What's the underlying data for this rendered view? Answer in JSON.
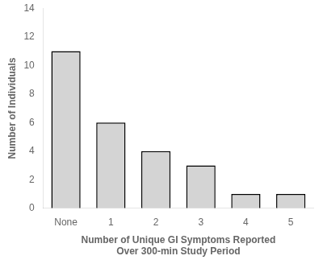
{
  "chart_data": {
    "type": "bar",
    "categories": [
      "None",
      "1",
      "2",
      "3",
      "4",
      "5"
    ],
    "values": [
      11,
      6,
      4,
      3,
      1,
      1
    ],
    "color": "#d4d4d4",
    "xlabel": [
      "Number of Unique GI Symptoms Reported",
      "Over 300-min Study Period"
    ],
    "ylabel": "Number of Individuals",
    "ylim": [
      0,
      14
    ],
    "yticks": [
      0,
      2,
      4,
      6,
      8,
      10,
      12,
      14
    ],
    "grid": false
  }
}
